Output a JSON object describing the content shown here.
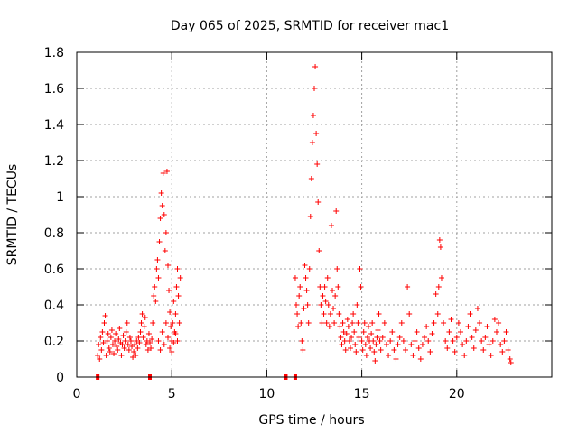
{
  "chart_data": {
    "type": "scatter",
    "title": "Day 065 of 2025, SRMTID for receiver mac1",
    "xlabel": "GPS time / hours",
    "ylabel": "SRMTID / TECUs",
    "xlim": [
      0,
      25
    ],
    "ylim": [
      0,
      1.8
    ],
    "xticks": [
      0,
      5,
      10,
      15,
      20
    ],
    "yticks": [
      0,
      0.2,
      0.4,
      0.6,
      0.8,
      1,
      1.2,
      1.4,
      1.6,
      1.8
    ],
    "xtick_labels": [
      "0",
      "5",
      "10",
      "15",
      "20"
    ],
    "ytick_labels": [
      "0",
      "0.2",
      "0.4",
      "0.6",
      "0.8",
      "1",
      "1.2",
      "1.4",
      "1.6",
      "1.8"
    ],
    "grid": true,
    "marker": "plus",
    "color": "#ff0000",
    "series": [
      {
        "name": "SRMTID",
        "points": [
          [
            1.1,
            0.12
          ],
          [
            1.15,
            0.18
          ],
          [
            1.2,
            0.1
          ],
          [
            1.25,
            0.22
          ],
          [
            1.3,
            0.15
          ],
          [
            1.35,
            0.25
          ],
          [
            1.4,
            0.19
          ],
          [
            1.45,
            0.3
          ],
          [
            1.5,
            0.34
          ],
          [
            1.55,
            0.12
          ],
          [
            1.6,
            0.2
          ],
          [
            1.65,
            0.24
          ],
          [
            1.7,
            0.16
          ],
          [
            1.75,
            0.14
          ],
          [
            1.8,
            0.22
          ],
          [
            1.85,
            0.26
          ],
          [
            1.9,
            0.18
          ],
          [
            1.95,
            0.13
          ],
          [
            2.0,
            0.2
          ],
          [
            2.05,
            0.24
          ],
          [
            2.1,
            0.17
          ],
          [
            2.15,
            0.15
          ],
          [
            2.2,
            0.21
          ],
          [
            2.25,
            0.27
          ],
          [
            2.3,
            0.19
          ],
          [
            2.35,
            0.12
          ],
          [
            2.4,
            0.18
          ],
          [
            2.45,
            0.23
          ],
          [
            2.5,
            0.16
          ],
          [
            2.55,
            0.2
          ],
          [
            2.6,
            0.25
          ],
          [
            2.65,
            0.3
          ],
          [
            2.7,
            0.18
          ],
          [
            2.75,
            0.15
          ],
          [
            2.8,
            0.22
          ],
          [
            2.85,
            0.2
          ],
          [
            2.9,
            0.17
          ],
          [
            2.95,
            0.11
          ],
          [
            3.0,
            0.14
          ],
          [
            3.05,
            0.18
          ],
          [
            3.1,
            0.12
          ],
          [
            3.15,
            0.2
          ],
          [
            3.2,
            0.16
          ],
          [
            3.25,
            0.22
          ],
          [
            3.3,
            0.19
          ],
          [
            3.35,
            0.25
          ],
          [
            3.4,
            0.3
          ],
          [
            3.45,
            0.35
          ],
          [
            3.5,
            0.22
          ],
          [
            3.55,
            0.28
          ],
          [
            3.6,
            0.33
          ],
          [
            3.65,
            0.18
          ],
          [
            3.7,
            0.2
          ],
          [
            3.75,
            0.15
          ],
          [
            3.8,
            0.24
          ],
          [
            3.85,
            0.19
          ],
          [
            3.9,
            0.16
          ],
          [
            3.95,
            0.21
          ],
          [
            4.0,
            0.3
          ],
          [
            4.05,
            0.45
          ],
          [
            4.1,
            0.5
          ],
          [
            4.15,
            0.42
          ],
          [
            4.2,
            0.6
          ],
          [
            4.25,
            0.65
          ],
          [
            4.3,
            0.55
          ],
          [
            4.35,
            0.75
          ],
          [
            4.4,
            0.88
          ],
          [
            4.45,
            1.02
          ],
          [
            4.5,
            0.95
          ],
          [
            4.55,
            1.13
          ],
          [
            4.6,
            0.9
          ],
          [
            4.65,
            0.7
          ],
          [
            4.7,
            0.8
          ],
          [
            4.75,
            1.14
          ],
          [
            4.8,
            0.62
          ],
          [
            4.85,
            0.48
          ],
          [
            4.9,
            0.36
          ],
          [
            4.95,
            0.28
          ],
          [
            5.0,
            0.2
          ],
          [
            5.05,
            0.3
          ],
          [
            5.1,
            0.42
          ],
          [
            5.15,
            0.25
          ],
          [
            5.2,
            0.35
          ],
          [
            5.25,
            0.5
          ],
          [
            5.3,
            0.6
          ],
          [
            5.35,
            0.45
          ],
          [
            5.4,
            0.3
          ],
          [
            5.45,
            0.55
          ],
          [
            4.3,
            0.2
          ],
          [
            4.4,
            0.15
          ],
          [
            4.5,
            0.25
          ],
          [
            4.6,
            0.18
          ],
          [
            4.7,
            0.3
          ],
          [
            4.8,
            0.22
          ],
          [
            4.9,
            0.16
          ],
          [
            5.0,
            0.14
          ],
          [
            5.1,
            0.19
          ],
          [
            5.2,
            0.24
          ],
          [
            5.3,
            0.2
          ],
          [
            11.5,
            0.55
          ],
          [
            11.55,
            0.4
          ],
          [
            11.6,
            0.35
          ],
          [
            11.65,
            0.28
          ],
          [
            11.7,
            0.45
          ],
          [
            11.75,
            0.5
          ],
          [
            11.8,
            0.3
          ],
          [
            11.85,
            0.2
          ],
          [
            11.9,
            0.15
          ],
          [
            11.95,
            0.38
          ],
          [
            12.0,
            0.62
          ],
          [
            12.05,
            0.55
          ],
          [
            12.1,
            0.48
          ],
          [
            12.15,
            0.4
          ],
          [
            12.2,
            0.3
          ],
          [
            12.25,
            0.6
          ],
          [
            12.3,
            0.89
          ],
          [
            12.35,
            1.1
          ],
          [
            12.4,
            1.3
          ],
          [
            12.45,
            1.45
          ],
          [
            12.5,
            1.6
          ],
          [
            12.55,
            1.72
          ],
          [
            12.6,
            1.35
          ],
          [
            12.65,
            1.18
          ],
          [
            12.7,
            0.97
          ],
          [
            12.75,
            0.7
          ],
          [
            12.8,
            0.5
          ],
          [
            12.85,
            0.4
          ],
          [
            12.9,
            0.3
          ],
          [
            12.95,
            0.45
          ],
          [
            13.0,
            0.35
          ],
          [
            13.05,
            0.5
          ],
          [
            13.1,
            0.42
          ],
          [
            13.15,
            0.3
          ],
          [
            13.2,
            0.55
          ],
          [
            13.25,
            0.4
          ],
          [
            13.3,
            0.28
          ],
          [
            13.35,
            0.35
          ],
          [
            13.4,
            0.84
          ],
          [
            13.45,
            0.48
          ],
          [
            13.5,
            0.38
          ],
          [
            13.55,
            0.3
          ],
          [
            13.6,
            0.45
          ],
          [
            13.65,
            0.92
          ],
          [
            13.7,
            0.6
          ],
          [
            13.75,
            0.5
          ],
          [
            13.8,
            0.35
          ],
          [
            13.85,
            0.28
          ],
          [
            13.9,
            0.22
          ],
          [
            13.95,
            0.18
          ],
          [
            14.0,
            0.3
          ],
          [
            14.05,
            0.25
          ],
          [
            14.1,
            0.2
          ],
          [
            14.15,
            0.15
          ],
          [
            14.2,
            0.24
          ],
          [
            14.25,
            0.32
          ],
          [
            14.3,
            0.28
          ],
          [
            14.35,
            0.2
          ],
          [
            14.4,
            0.16
          ],
          [
            14.45,
            0.22
          ],
          [
            14.5,
            0.3
          ],
          [
            14.55,
            0.35
          ],
          [
            14.6,
            0.25
          ],
          [
            14.65,
            0.18
          ],
          [
            14.7,
            0.14
          ],
          [
            14.75,
            0.4
          ],
          [
            14.8,
            0.3
          ],
          [
            14.85,
            0.22
          ],
          [
            14.9,
            0.6
          ],
          [
            14.95,
            0.5
          ],
          [
            15.0,
            0.2
          ],
          [
            15.05,
            0.15
          ],
          [
            15.1,
            0.25
          ],
          [
            15.15,
            0.3
          ],
          [
            15.2,
            0.18
          ],
          [
            15.25,
            0.12
          ],
          [
            15.3,
            0.22
          ],
          [
            15.35,
            0.28
          ],
          [
            15.4,
            0.2
          ],
          [
            15.45,
            0.16
          ],
          [
            15.5,
            0.24
          ],
          [
            15.55,
            0.3
          ],
          [
            15.6,
            0.2
          ],
          [
            15.65,
            0.14
          ],
          [
            15.7,
            0.09
          ],
          [
            15.75,
            0.18
          ],
          [
            15.8,
            0.22
          ],
          [
            15.85,
            0.26
          ],
          [
            15.9,
            0.35
          ],
          [
            15.95,
            0.2
          ],
          [
            16.0,
            0.15
          ],
          [
            16.1,
            0.22
          ],
          [
            16.2,
            0.3
          ],
          [
            16.3,
            0.18
          ],
          [
            16.4,
            0.12
          ],
          [
            16.5,
            0.2
          ],
          [
            16.6,
            0.25
          ],
          [
            16.7,
            0.15
          ],
          [
            16.8,
            0.1
          ],
          [
            16.9,
            0.18
          ],
          [
            17.0,
            0.22
          ],
          [
            17.1,
            0.3
          ],
          [
            17.2,
            0.2
          ],
          [
            17.3,
            0.15
          ],
          [
            17.4,
            0.5
          ],
          [
            17.5,
            0.35
          ],
          [
            17.6,
            0.18
          ],
          [
            17.7,
            0.12
          ],
          [
            17.8,
            0.2
          ],
          [
            17.9,
            0.25
          ],
          [
            18.0,
            0.16
          ],
          [
            18.1,
            0.1
          ],
          [
            18.2,
            0.18
          ],
          [
            18.3,
            0.22
          ],
          [
            18.4,
            0.28
          ],
          [
            18.5,
            0.2
          ],
          [
            18.6,
            0.14
          ],
          [
            18.7,
            0.24
          ],
          [
            18.8,
            0.3
          ],
          [
            18.9,
            0.46
          ],
          [
            19.0,
            0.35
          ],
          [
            19.05,
            0.5
          ],
          [
            19.1,
            0.76
          ],
          [
            19.15,
            0.72
          ],
          [
            19.2,
            0.55
          ],
          [
            19.3,
            0.3
          ],
          [
            19.4,
            0.2
          ],
          [
            19.5,
            0.16
          ],
          [
            19.6,
            0.25
          ],
          [
            19.7,
            0.32
          ],
          [
            19.8,
            0.2
          ],
          [
            19.9,
            0.14
          ],
          [
            20.0,
            0.22
          ],
          [
            20.1,
            0.3
          ],
          [
            20.2,
            0.25
          ],
          [
            20.3,
            0.18
          ],
          [
            20.4,
            0.12
          ],
          [
            20.5,
            0.2
          ],
          [
            20.6,
            0.28
          ],
          [
            20.7,
            0.35
          ],
          [
            20.8,
            0.22
          ],
          [
            20.9,
            0.16
          ],
          [
            21.0,
            0.26
          ],
          [
            21.1,
            0.38
          ],
          [
            21.2,
            0.3
          ],
          [
            21.3,
            0.2
          ],
          [
            21.4,
            0.15
          ],
          [
            21.5,
            0.22
          ],
          [
            21.6,
            0.28
          ],
          [
            21.7,
            0.18
          ],
          [
            21.8,
            0.12
          ],
          [
            21.9,
            0.2
          ],
          [
            22.0,
            0.32
          ],
          [
            22.1,
            0.25
          ],
          [
            22.2,
            0.3
          ],
          [
            22.3,
            0.18
          ],
          [
            22.4,
            0.14
          ],
          [
            22.5,
            0.2
          ],
          [
            22.6,
            0.25
          ],
          [
            22.7,
            0.15
          ],
          [
            22.8,
            0.1
          ],
          [
            22.85,
            0.08
          ]
        ]
      }
    ],
    "zero_markers": [
      1.1,
      3.85,
      11.5,
      11.0
    ]
  }
}
